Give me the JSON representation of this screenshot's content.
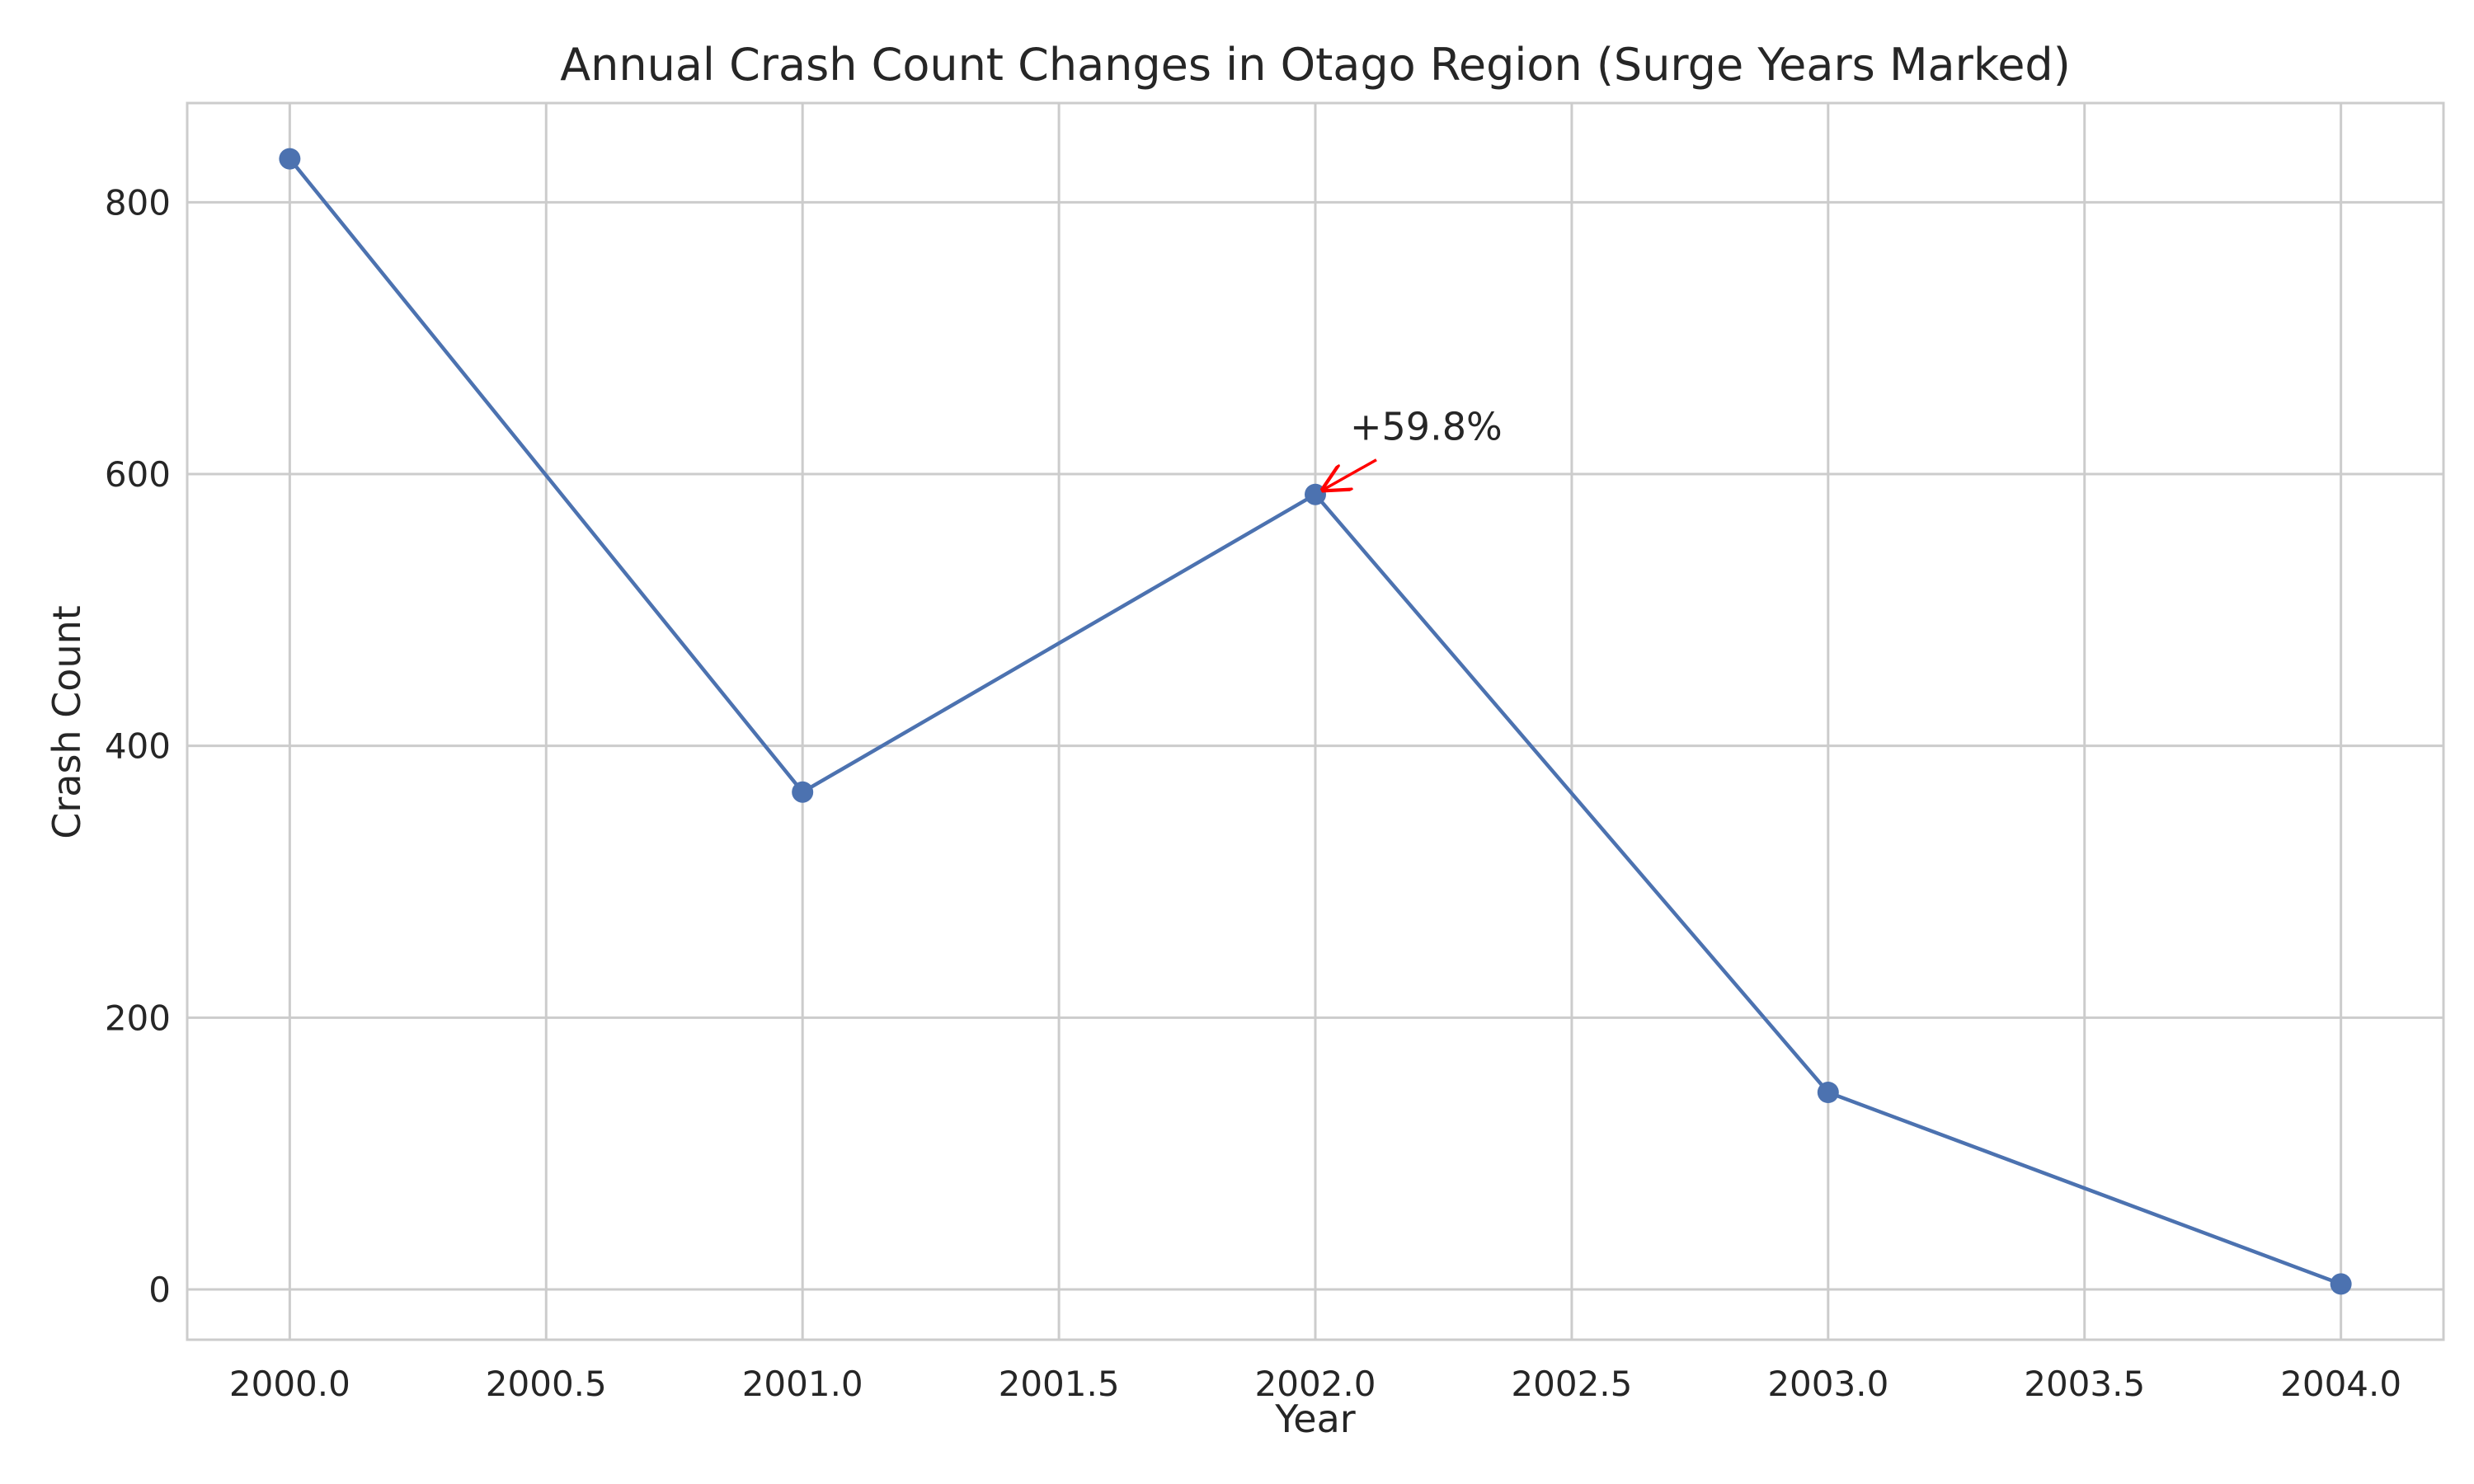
{
  "chart_data": {
    "type": "line",
    "title": "Annual Crash Count Changes in Otago Region (Surge Years Marked)",
    "xlabel": "Year",
    "ylabel": "Crash Count",
    "xlim": [
      1999.8,
      2004.2
    ],
    "ylim": [
      -37,
      873
    ],
    "x_ticks": [
      2000.0,
      2000.5,
      2001.0,
      2001.5,
      2002.0,
      2002.5,
      2003.0,
      2003.5,
      2004.0
    ],
    "x_tick_labels": [
      "2000.0",
      "2000.5",
      "2001.0",
      "2001.5",
      "2002.0",
      "2002.5",
      "2003.0",
      "2003.5",
      "2004.0"
    ],
    "y_ticks": [
      0,
      200,
      400,
      600,
      800
    ],
    "y_tick_labels": [
      "0",
      "200",
      "400",
      "600",
      "800"
    ],
    "grid": true,
    "series": [
      {
        "x": [
          2000,
          2001,
          2002,
          2003,
          2004
        ],
        "y": [
          832,
          366,
          585,
          145,
          4
        ],
        "color": "#4c72b0",
        "marker": "circle"
      }
    ],
    "annotations": [
      {
        "text": "+59.8%",
        "x": 2002,
        "y": 585,
        "arrow_color": "#ff0000"
      }
    ]
  }
}
